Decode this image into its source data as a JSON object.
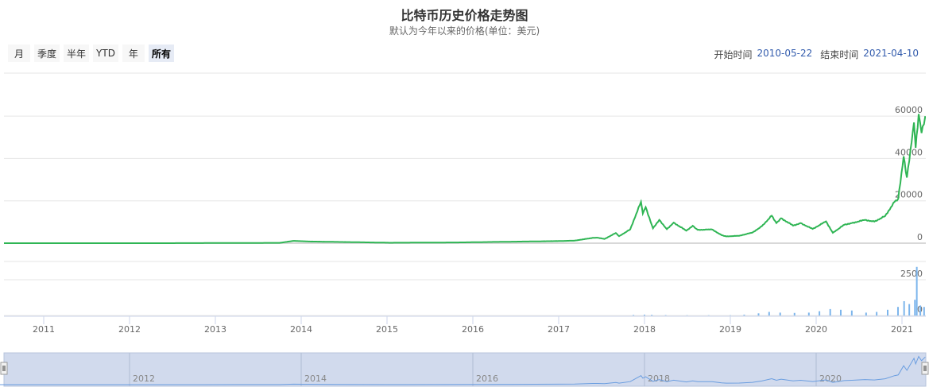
{
  "title": "比特币历史价格走势图",
  "subtitle": "默认为今年以来的价格(单位：美元)",
  "range_selector": {
    "buttons": [
      "月",
      "季度",
      "半年",
      "YTD",
      "年",
      "所有"
    ],
    "selected": "所有"
  },
  "date_inputs": {
    "start_label": "开始时间",
    "start_value": "2010-05-22",
    "end_label": "结束时间",
    "end_value": "2021-04-10"
  },
  "colors": {
    "price": "#2fb554",
    "volume": "#7cb5ec",
    "navigator_mask": "#ccd6eb"
  },
  "chart_data": {
    "type": "line",
    "xlim": [
      "2010-05-22",
      "2021-04-10"
    ],
    "x_ticks": [
      "2011",
      "2012",
      "2013",
      "2014",
      "2015",
      "2016",
      "2017",
      "2018",
      "2019",
      "2020",
      "2021"
    ],
    "navigator_ticks": [
      "2012",
      "2014",
      "2016",
      "2018",
      "2020"
    ],
    "price": {
      "ylim": [
        0,
        60000
      ],
      "y_ticks": [
        0,
        20000,
        40000,
        60000
      ],
      "points": [
        [
          "2010-05-22",
          0
        ],
        [
          "2012-06-01",
          6
        ],
        [
          "2013-04-01",
          100
        ],
        [
          "2013-10-01",
          150
        ],
        [
          "2013-11-30",
          1100
        ],
        [
          "2014-02-01",
          800
        ],
        [
          "2014-06-01",
          600
        ],
        [
          "2015-01-15",
          200
        ],
        [
          "2015-11-01",
          350
        ],
        [
          "2016-06-15",
          700
        ],
        [
          "2017-01-01",
          1000
        ],
        [
          "2017-03-10",
          1200
        ],
        [
          "2017-05-25",
          2500
        ],
        [
          "2017-06-15",
          2600
        ],
        [
          "2017-07-15",
          2000
        ],
        [
          "2017-09-01",
          4800
        ],
        [
          "2017-09-15",
          3300
        ],
        [
          "2017-11-01",
          6500
        ],
        [
          "2017-12-17",
          19500
        ],
        [
          "2017-12-25",
          14000
        ],
        [
          "2018-01-06",
          17000
        ],
        [
          "2018-02-06",
          7000
        ],
        [
          "2018-03-05",
          11000
        ],
        [
          "2018-04-06",
          6600
        ],
        [
          "2018-05-05",
          9700
        ],
        [
          "2018-06-28",
          5900
        ],
        [
          "2018-07-25",
          8200
        ],
        [
          "2018-08-15",
          6300
        ],
        [
          "2018-10-15",
          6500
        ],
        [
          "2018-11-25",
          3800
        ],
        [
          "2018-12-15",
          3200
        ],
        [
          "2019-02-08",
          3500
        ],
        [
          "2019-04-05",
          5000
        ],
        [
          "2019-05-15",
          8000
        ],
        [
          "2019-06-26",
          13000
        ],
        [
          "2019-07-16",
          9500
        ],
        [
          "2019-08-05",
          11800
        ],
        [
          "2019-09-25",
          8300
        ],
        [
          "2019-10-27",
          9500
        ],
        [
          "2019-12-17",
          6700
        ],
        [
          "2020-02-12",
          10300
        ],
        [
          "2020-03-12",
          4900
        ],
        [
          "2020-04-30",
          8700
        ],
        [
          "2020-06-01",
          9500
        ],
        [
          "2020-07-27",
          11000
        ],
        [
          "2020-09-05",
          10200
        ],
        [
          "2020-10-21",
          12800
        ],
        [
          "2020-11-30",
          19500
        ],
        [
          "2020-12-16",
          21000
        ],
        [
          "2021-01-08",
          41000
        ],
        [
          "2021-01-22",
          31000
        ],
        [
          "2021-02-21",
          57000
        ],
        [
          "2021-02-28",
          45000
        ],
        [
          "2021-03-13",
          61000
        ],
        [
          "2021-03-25",
          52000
        ],
        [
          "2021-04-10",
          60000
        ]
      ]
    },
    "volume": {
      "ylim": [
        0,
        2500
      ],
      "y_ticks": [
        0,
        2500
      ],
      "points": [
        [
          "2017-11-15",
          40
        ],
        [
          "2018-01-01",
          60
        ],
        [
          "2018-02-01",
          50
        ],
        [
          "2018-04-01",
          30
        ],
        [
          "2018-07-01",
          20
        ],
        [
          "2018-10-01",
          20
        ],
        [
          "2019-01-01",
          20
        ],
        [
          "2019-03-01",
          60
        ],
        [
          "2019-05-01",
          150
        ],
        [
          "2019-06-15",
          250
        ],
        [
          "2019-08-01",
          200
        ],
        [
          "2019-10-01",
          180
        ],
        [
          "2019-12-01",
          200
        ],
        [
          "2020-01-15",
          300
        ],
        [
          "2020-03-01",
          450
        ],
        [
          "2020-04-15",
          400
        ],
        [
          "2020-06-01",
          350
        ],
        [
          "2020-08-01",
          200
        ],
        [
          "2020-09-15",
          250
        ],
        [
          "2020-11-01",
          400
        ],
        [
          "2020-12-15",
          600
        ],
        [
          "2021-01-10",
          1000
        ],
        [
          "2021-02-01",
          800
        ],
        [
          "2021-02-25",
          1100
        ],
        [
          "2021-03-05",
          3400
        ],
        [
          "2021-03-20",
          700
        ],
        [
          "2021-04-05",
          600
        ]
      ]
    }
  }
}
